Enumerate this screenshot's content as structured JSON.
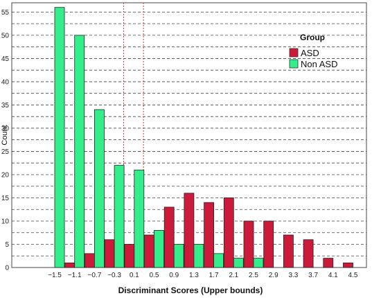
{
  "chart_data": {
    "type": "bar",
    "xlabel": "Discriminant Scores (Upper bounds)",
    "ylabel": "Count",
    "ylim": [
      0,
      57
    ],
    "yticks": [
      0,
      5,
      10,
      15,
      20,
      25,
      30,
      35,
      40,
      45,
      50,
      55
    ],
    "grid": "horizontal dashed",
    "categories": [
      "−1.5",
      "−1.1",
      "−0.7",
      "−0.3",
      "0.1",
      "0.5",
      "0.9",
      "1.3",
      "1.7",
      "2.1",
      "2.5",
      "2.9",
      "3.3",
      "3.7",
      "4.1",
      "4.5"
    ],
    "series": [
      {
        "name": "ASD",
        "color": "#cc1a3a",
        "values": [
          0,
          1,
          3,
          6,
          5,
          7,
          13,
          16,
          14,
          15,
          10,
          10,
          7,
          6,
          2,
          1
        ]
      },
      {
        "name": "Non ASD",
        "color": "#33ee8a",
        "values": [
          56,
          50,
          34,
          22,
          21,
          8,
          5,
          5,
          3,
          2,
          2,
          0,
          0,
          0,
          0,
          0
        ]
      }
    ],
    "legend": {
      "title": "Group",
      "placement": "top-right"
    },
    "reference_lines": {
      "style": "vertical dotted red"
    }
  }
}
